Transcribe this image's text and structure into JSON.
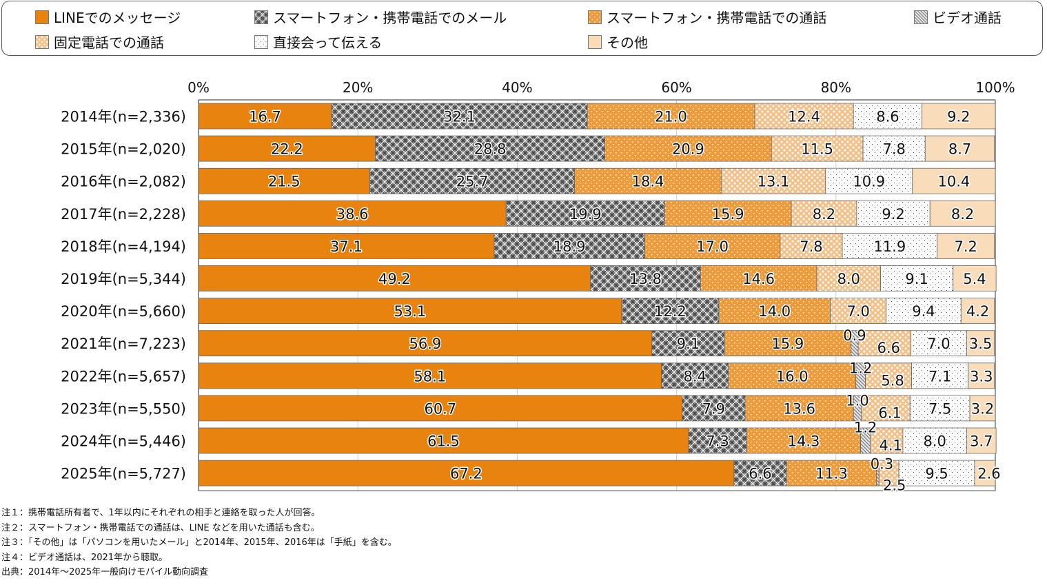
{
  "legend": [
    {
      "label": "LINEでのメッセージ",
      "pattern": "solid-orange"
    },
    {
      "label": "スマートフォン・携帯電話でのメール",
      "pattern": "crosshatch-gray"
    },
    {
      "label": "スマートフォン・携帯電話での通話",
      "pattern": "dots-orange"
    },
    {
      "label": "ビデオ通話",
      "pattern": "diagonal-gray"
    },
    {
      "label": "固定電話での通話",
      "pattern": "diamond-lightorange"
    },
    {
      "label": "直接会って伝える",
      "pattern": "dots-white"
    },
    {
      "label": "その他",
      "pattern": "solid-peach"
    }
  ],
  "colors": {
    "line": "#E8830F",
    "mail": "#6E6E6E",
    "phone_call": "#EE9B3E",
    "video": "#A8A8A8",
    "landline": "#F5BF88",
    "in_person": "#FFFFFF",
    "other": "#F9DDBA"
  },
  "chart_data": {
    "type": "bar",
    "orientation": "horizontal",
    "stacked": "percent",
    "title": "",
    "xlabel": "",
    "ylabel": "",
    "xlim": [
      0,
      100
    ],
    "x_ticks": [
      "0%",
      "20%",
      "40%",
      "60%",
      "80%",
      "100%"
    ],
    "x_tick_position": "top",
    "grid": true,
    "legend_position": "top",
    "categories": [
      "2014年(n=2,336)",
      "2015年(n=2,020)",
      "2016年(n=2,082)",
      "2017年(n=2,228)",
      "2018年(n=4,194)",
      "2019年(n=5,344)",
      "2020年(n=5,660)",
      "2021年(n=7,223)",
      "2022年(n=5,657)",
      "2023年(n=5,550)",
      "2024年(n=5,446)",
      "2025年(n=5,727)"
    ],
    "series": [
      {
        "name": "LINEでのメッセージ",
        "key": "line",
        "values": [
          16.7,
          22.2,
          21.5,
          38.6,
          37.1,
          49.2,
          53.1,
          56.9,
          58.1,
          60.7,
          61.5,
          67.2
        ]
      },
      {
        "name": "スマートフォン・携帯電話でのメール",
        "key": "mail",
        "values": [
          32.1,
          28.8,
          25.7,
          19.9,
          18.9,
          13.8,
          12.2,
          9.1,
          8.4,
          7.9,
          7.3,
          6.6
        ]
      },
      {
        "name": "スマートフォン・携帯電話での通話",
        "key": "phone_call",
        "values": [
          21.0,
          20.9,
          18.4,
          15.9,
          17.0,
          14.6,
          14.0,
          15.9,
          16.0,
          13.6,
          14.3,
          11.3
        ]
      },
      {
        "name": "ビデオ通話",
        "key": "video",
        "values": [
          null,
          null,
          null,
          null,
          null,
          null,
          null,
          0.9,
          1.2,
          1.0,
          1.2,
          0.3
        ]
      },
      {
        "name": "固定電話での通話",
        "key": "landline",
        "values": [
          12.4,
          11.5,
          13.1,
          8.2,
          7.8,
          8.0,
          7.0,
          6.6,
          5.8,
          6.1,
          4.1,
          2.5
        ]
      },
      {
        "name": "直接会って伝える",
        "key": "in_person",
        "values": [
          8.6,
          7.8,
          10.9,
          9.2,
          11.9,
          9.1,
          9.4,
          7.0,
          7.1,
          7.5,
          8.0,
          9.5
        ]
      },
      {
        "name": "その他",
        "key": "other",
        "values": [
          9.2,
          8.7,
          10.4,
          8.2,
          7.2,
          5.4,
          4.2,
          3.5,
          3.3,
          3.2,
          3.7,
          2.6
        ]
      }
    ]
  },
  "notes": [
    "注１：携帯電話所有者で、1年以内にそれぞれの相手と連絡を取った人が回答。",
    "注２：スマートフォン・携帯電話での通話は、LINE などを用いた通話も含む。",
    "注３：「その他」は「パソコンを用いたメール」と2014年、2015年、2016年は「手紙」を含む。",
    "注４：ビデオ通話は、2021年から聴取。",
    "出典：2014年～2025年一般向けモバイル動向調査"
  ]
}
